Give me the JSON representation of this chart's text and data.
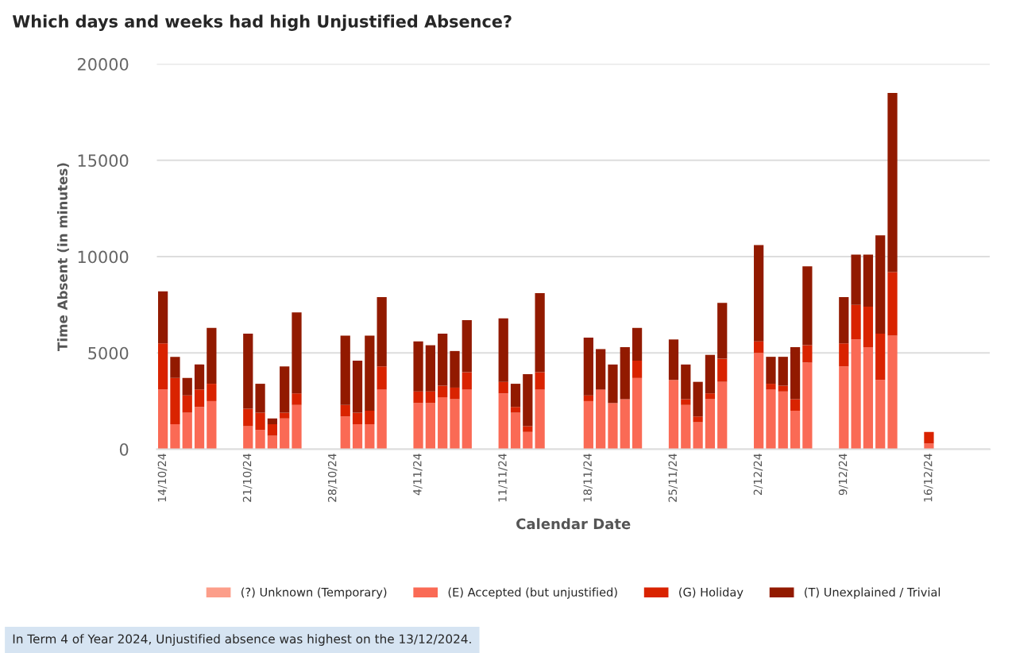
{
  "chart_data": {
    "type": "bar",
    "title": "Which days and weeks had high Unjustified Absence?",
    "xlabel": "Calendar Date",
    "ylabel": "Time Absent (in minutes)",
    "stacked": true,
    "grid": "y",
    "legend": "bottom",
    "x": [
      "2024-10-14",
      "2024-10-15",
      "2024-10-16",
      "2024-10-17",
      "2024-10-18",
      "2024-10-21",
      "2024-10-22",
      "2024-10-23",
      "2024-10-24",
      "2024-10-25",
      "2024-10-29",
      "2024-10-30",
      "2024-10-31",
      "2024-11-01",
      "2024-11-04",
      "2024-11-05",
      "2024-11-06",
      "2024-11-07",
      "2024-11-08",
      "2024-11-11",
      "2024-11-12",
      "2024-11-13",
      "2024-11-14",
      "2024-11-18",
      "2024-11-19",
      "2024-11-20",
      "2024-11-21",
      "2024-11-22",
      "2024-11-25",
      "2024-11-26",
      "2024-11-27",
      "2024-11-28",
      "2024-11-29",
      "2024-12-02",
      "2024-12-03",
      "2024-12-04",
      "2024-12-05",
      "2024-12-06",
      "2024-12-09",
      "2024-12-10",
      "2024-12-11",
      "2024-12-12",
      "2024-12-13",
      "2024-12-16"
    ],
    "series": [
      {
        "name": "(?) Unknown (Temporary)",
        "color": "#fc9e8a",
        "values": [
          0,
          0,
          0,
          0,
          0,
          0,
          0,
          0,
          0,
          0,
          0,
          0,
          0,
          0,
          0,
          0,
          0,
          0,
          0,
          0,
          0,
          0,
          0,
          0,
          0,
          0,
          0,
          0,
          0,
          0,
          0,
          0,
          0,
          0,
          0,
          0,
          0,
          0,
          0,
          0,
          0,
          0,
          0,
          0
        ]
      },
      {
        "name": "(E) Accepted (but unjustified)",
        "color": "#fa6a55",
        "values": [
          3100,
          1300,
          1900,
          2200,
          2500,
          1200,
          1000,
          700,
          1600,
          2300,
          1700,
          1300,
          1300,
          3100,
          2400,
          2400,
          2700,
          2600,
          3100,
          2900,
          1900,
          900,
          3100,
          2500,
          3100,
          2400,
          2600,
          3700,
          3600,
          2300,
          1400,
          2600,
          3500,
          5000,
          3100,
          3000,
          2000,
          4500,
          4300,
          5700,
          5300,
          3600,
          5900,
          300
        ]
      },
      {
        "name": "(G) Holiday",
        "color": "#d92300",
        "values": [
          2400,
          2400,
          900,
          900,
          900,
          900,
          900,
          600,
          300,
          600,
          600,
          600,
          700,
          1200,
          600,
          600,
          600,
          600,
          900,
          600,
          300,
          300,
          900,
          300,
          0,
          0,
          0,
          900,
          0,
          300,
          300,
          300,
          1200,
          600,
          300,
          300,
          600,
          900,
          1200,
          1800,
          2100,
          2400,
          3300,
          600
        ]
      },
      {
        "name": "(T) Unexplained / Trivial",
        "color": "#921a00",
        "values": [
          2700,
          1100,
          900,
          1300,
          2900,
          3900,
          1500,
          300,
          2400,
          4200,
          3600,
          2700,
          3900,
          3600,
          2600,
          2400,
          2700,
          1900,
          2700,
          3300,
          1200,
          2700,
          4100,
          3000,
          2100,
          2000,
          2700,
          1700,
          2100,
          1800,
          1800,
          2000,
          2900,
          5000,
          1400,
          1500,
          2700,
          4100,
          2400,
          2600,
          2700,
          5100,
          9300,
          0
        ]
      }
    ],
    "ylim": [
      0,
      20000
    ],
    "yticks": [
      0,
      5000,
      10000,
      15000,
      20000
    ],
    "xlim": [
      "2024-10-13T12:00",
      "2024-12-21"
    ],
    "xticks": [
      {
        "value": "2024-10-14",
        "label": "14/10/24"
      },
      {
        "value": "2024-10-21",
        "label": "21/10/24"
      },
      {
        "value": "2024-10-28",
        "label": "28/10/24"
      },
      {
        "value": "2024-11-04",
        "label": "4/11/24"
      },
      {
        "value": "2024-11-11",
        "label": "11/11/24"
      },
      {
        "value": "2024-11-18",
        "label": "18/11/24"
      },
      {
        "value": "2024-11-25",
        "label": "25/11/24"
      },
      {
        "value": "2024-12-02",
        "label": "2/12/24"
      },
      {
        "value": "2024-12-09",
        "label": "9/12/24"
      },
      {
        "value": "2024-12-16",
        "label": "16/12/24"
      }
    ],
    "annotations": [
      "In Term 4 of Year 2024, Unjustified absence was highest on the 13/12/2024."
    ]
  }
}
